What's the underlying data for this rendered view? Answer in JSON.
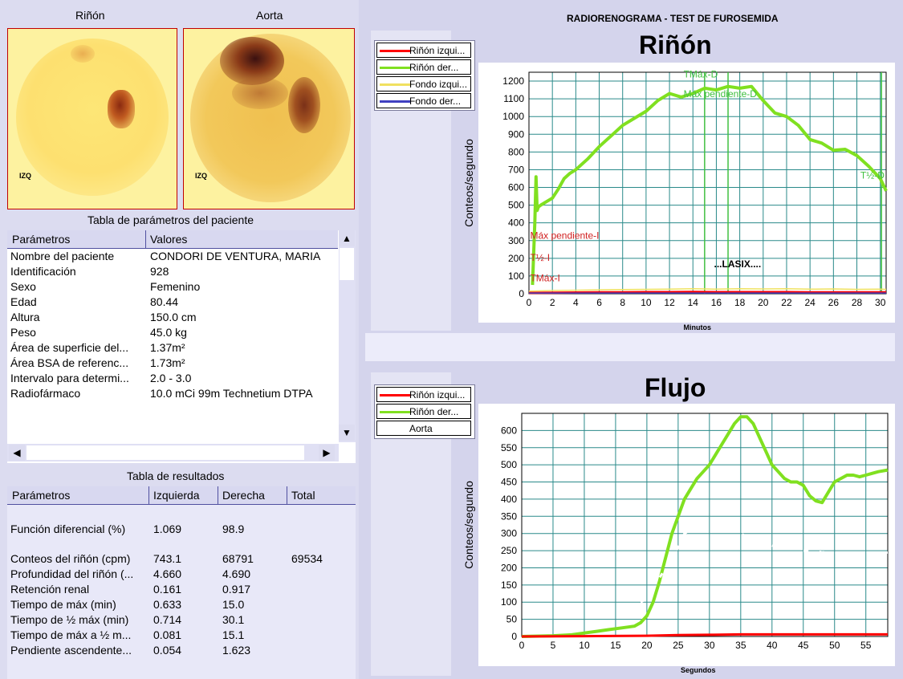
{
  "images": {
    "rinon_label": "Riñón",
    "aorta_label": "Aorta",
    "izq": "IZQ"
  },
  "patient_table": {
    "title": "Tabla de parámetros del paciente",
    "col_param": "Parámetros",
    "col_valor": "Valores",
    "rows": [
      {
        "p": "Nombre del paciente",
        "v": "CONDORI DE VENTURA,  MARIA"
      },
      {
        "p": "Identificación",
        "v": "928"
      },
      {
        "p": "Sexo",
        "v": "Femenino"
      },
      {
        "p": "Edad",
        "v": "80.44"
      },
      {
        "p": "Altura",
        "v": "150.0 cm"
      },
      {
        "p": "Peso",
        "v": "45.0 kg"
      },
      {
        "p": "Área de superficie del...",
        "v": "1.37m²"
      },
      {
        "p": "Área BSA de referenc...",
        "v": "1.73m²"
      },
      {
        "p": "Intervalo para determi...",
        "v": "2.0 - 3.0"
      },
      {
        "p": "Radiofármaco",
        "v": "10.0 mCi 99m Technetium DTPA"
      }
    ]
  },
  "results_table": {
    "title": "Tabla de resultados",
    "col_param": "Parámetros",
    "col_izq": "Izquierda",
    "col_der": "Derecha",
    "col_total": "Total",
    "rows": [
      {
        "p": "Función diferencial (%)",
        "i": "1.069",
        "d": "98.9",
        "t": ""
      },
      {
        "p": "Conteos del riñón (cpm)",
        "i": "743.1",
        "d": "68791",
        "t": "69534"
      },
      {
        "p": "Profundidad del riñón (...",
        "i": "4.660",
        "d": "4.690",
        "t": ""
      },
      {
        "p": "Retención renal",
        "i": "0.161",
        "d": "0.917",
        "t": ""
      },
      {
        "p": "Tiempo de máx (min)",
        "i": "0.633",
        "d": "15.0",
        "t": ""
      },
      {
        "p": "Tiempo de ½ máx (min)",
        "i": "0.714",
        "d": "30.1",
        "t": ""
      },
      {
        "p": "Tiempo de máx a ½ m...",
        "i": "0.081",
        "d": "15.1",
        "t": ""
      },
      {
        "p": "Pendiente ascendente...",
        "i": "0.054",
        "d": "1.623",
        "t": ""
      }
    ]
  },
  "header": {
    "title": "RADIORENOGRAMA  -  TEST  DE  FUROSEMIDA"
  },
  "legend_top": {
    "items": [
      {
        "label": "Riñón izqui...",
        "color": "#ff0000"
      },
      {
        "label": "Riñón der...",
        "color": "#80e020"
      },
      {
        "label": "Fondo izqui...",
        "color": "#f0e060"
      },
      {
        "label": "Fondo der...",
        "color": "#4040c0"
      }
    ]
  },
  "legend_bottom": {
    "items": [
      {
        "label": "Riñón izqui...",
        "color": "#ff0000"
      },
      {
        "label": "Riñón der...",
        "color": "#80e020"
      },
      {
        "label": "Aorta",
        "color": "#ffffff"
      }
    ]
  },
  "chart_data": [
    {
      "type": "line",
      "title": "Riñón",
      "xlabel": "Minutos",
      "ylabel": "Conteos/segundo",
      "xlim": [
        0,
        30.5
      ],
      "ylim": [
        0,
        1250
      ],
      "x_ticks": [
        0,
        2,
        4,
        6,
        8,
        10,
        12,
        14,
        16,
        18,
        20,
        22,
        24,
        26,
        28,
        30
      ],
      "y_ticks": [
        0,
        100,
        200,
        300,
        400,
        500,
        600,
        700,
        800,
        900,
        1000,
        1100,
        1200
      ],
      "grid": true,
      "annotations": [
        {
          "text": "TMáx-D",
          "x": 13.2,
          "y": 1220,
          "color": "#40c040"
        },
        {
          "text": "Máx pendiente-D",
          "x": 13.2,
          "y": 1110,
          "color": "#40c040"
        },
        {
          "text": "T½-D",
          "x": 28.3,
          "y": 650,
          "color": "#40c040"
        },
        {
          "text": "Máx pendiente-I",
          "x": 0.1,
          "y": 310,
          "color": "#d02020"
        },
        {
          "text": "T½-I",
          "x": 0.1,
          "y": 185,
          "color": "#d02020"
        },
        {
          "text": "TMáx-I",
          "x": 0.1,
          "y": 70,
          "color": "#d02020"
        },
        {
          "text": "...LASIX....",
          "x": 15.8,
          "y": 150,
          "color": "#000000"
        }
      ],
      "vlines": [
        {
          "x": 15.0,
          "color": "#40c040"
        },
        {
          "x": 17.0,
          "color": "#40c040"
        },
        {
          "x": 30.1,
          "color": "#40c040"
        }
      ],
      "series": [
        {
          "name": "Riñón der...",
          "color": "#80e020",
          "x": [
            0.3,
            0.5,
            0.6,
            0.7,
            0.8,
            1.0,
            1.5,
            2,
            2.5,
            3,
            3.5,
            4,
            5,
            6,
            7,
            8,
            9,
            10,
            11,
            12,
            13,
            14,
            15,
            16,
            17,
            18,
            19,
            20,
            21,
            22,
            23,
            24,
            25,
            26,
            27,
            28,
            29,
            30,
            30.5
          ],
          "y": [
            50,
            400,
            660,
            470,
            490,
            500,
            520,
            540,
            590,
            650,
            680,
            700,
            760,
            830,
            890,
            950,
            990,
            1030,
            1090,
            1130,
            1110,
            1130,
            1160,
            1150,
            1170,
            1160,
            1170,
            1090,
            1020,
            1000,
            950,
            870,
            850,
            810,
            815,
            780,
            720,
            650,
            580
          ]
        },
        {
          "name": "Riñón izqui...",
          "color": "#ff0000",
          "x": [
            0,
            2,
            4,
            6,
            8,
            10,
            12,
            14,
            16,
            18,
            20,
            22,
            24,
            26,
            28,
            30,
            30.5
          ],
          "y": [
            5,
            6,
            7,
            8,
            8,
            9,
            9,
            10,
            9,
            9,
            9,
            9,
            8,
            8,
            8,
            8,
            8
          ]
        },
        {
          "name": "Fondo izqui...",
          "color": "#f0e060",
          "x": [
            0,
            2,
            4,
            6,
            8,
            10,
            12,
            14,
            16,
            18,
            20,
            22,
            24,
            26,
            28,
            30,
            30.5
          ],
          "y": [
            15,
            18,
            20,
            22,
            24,
            25,
            26,
            28,
            26,
            28,
            27,
            28,
            26,
            27,
            25,
            26,
            25
          ]
        },
        {
          "name": "Fondo der...",
          "color": "#4040c0",
          "x": [
            0,
            5,
            10,
            15,
            20,
            25,
            30,
            30.5
          ],
          "y": [
            4,
            4,
            4,
            4,
            4,
            4,
            4,
            4
          ]
        }
      ]
    },
    {
      "type": "line",
      "title": "Flujo",
      "xlabel": "Segundos",
      "ylabel": "Conteos/segundo",
      "xlim": [
        0,
        58.5
      ],
      "ylim": [
        0,
        650
      ],
      "x_ticks": [
        0,
        5,
        10,
        15,
        20,
        25,
        30,
        35,
        40,
        45,
        50,
        55
      ],
      "y_ticks": [
        0,
        50,
        100,
        150,
        200,
        250,
        300,
        350,
        400,
        450,
        500,
        550,
        600
      ],
      "grid": true,
      "series": [
        {
          "name": "Riñón der...",
          "color": "#80e020",
          "x": [
            0,
            5,
            8,
            10,
            12,
            14,
            16,
            18,
            19,
            20,
            21,
            22,
            23,
            24,
            25,
            26,
            27,
            28,
            29,
            30,
            31,
            32,
            33,
            34,
            35,
            36,
            37,
            38,
            39,
            40,
            41,
            42,
            43,
            44,
            45,
            46,
            47,
            48,
            49,
            50,
            51,
            52,
            53,
            54,
            55,
            56,
            57,
            58.5
          ],
          "y": [
            0,
            2,
            5,
            10,
            15,
            20,
            25,
            30,
            40,
            60,
            100,
            160,
            230,
            300,
            350,
            400,
            430,
            460,
            480,
            500,
            530,
            560,
            590,
            620,
            640,
            640,
            620,
            580,
            540,
            500,
            480,
            460,
            450,
            450,
            440,
            410,
            395,
            390,
            420,
            450,
            460,
            470,
            470,
            465,
            470,
            475,
            480,
            485
          ]
        },
        {
          "name": "Riñón izqui...",
          "color": "#ff0000",
          "x": [
            0,
            10,
            20,
            25,
            30,
            35,
            40,
            45,
            50,
            55,
            58.5
          ],
          "y": [
            0,
            1,
            2,
            4,
            5,
            6,
            6,
            6,
            6,
            6,
            6
          ]
        },
        {
          "name": "Aorta",
          "color": "#ffffff",
          "x": [
            19,
            20,
            21,
            22,
            23,
            24,
            25,
            26,
            27,
            28,
            29,
            30,
            31,
            32,
            33,
            34,
            35,
            36,
            37,
            38,
            39,
            40,
            41,
            42,
            43,
            44,
            45,
            46,
            47,
            48,
            49,
            50,
            51,
            52,
            53,
            54,
            55,
            56,
            57,
            58.5
          ],
          "y": [
            100,
            110,
            140,
            170,
            200,
            230,
            260,
            300,
            310,
            320,
            325,
            330,
            320,
            315,
            310,
            305,
            300,
            290,
            285,
            275,
            270,
            265,
            260,
            258,
            255,
            255,
            250,
            248,
            250,
            245,
            248,
            245,
            242,
            245,
            243,
            240,
            242,
            240,
            242,
            245
          ]
        }
      ]
    }
  ]
}
